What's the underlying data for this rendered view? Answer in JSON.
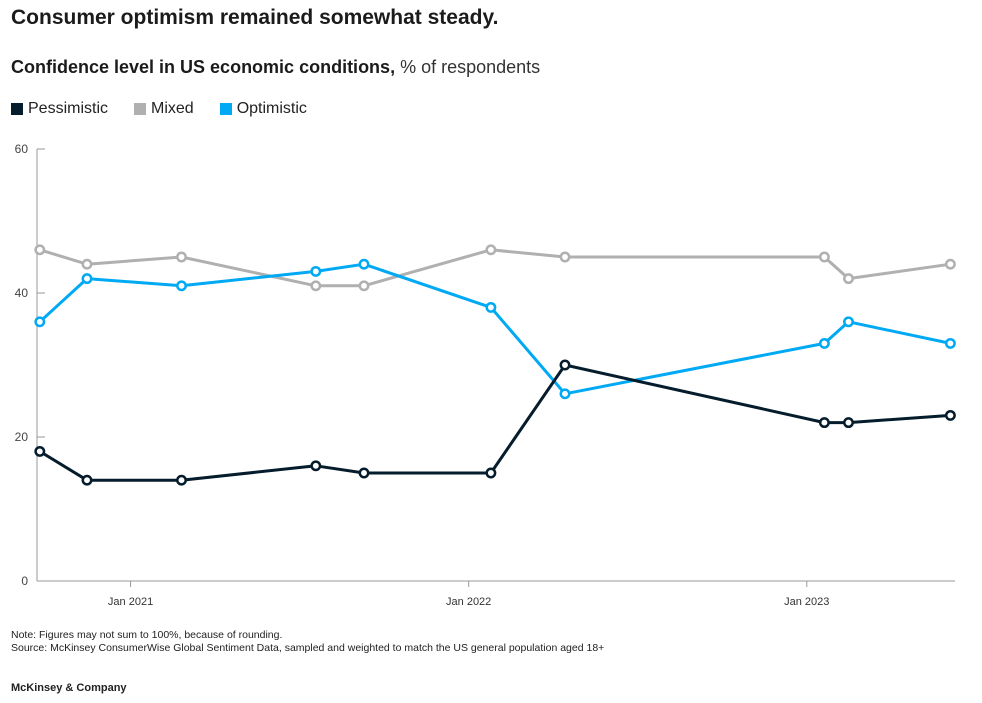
{
  "title": "Consumer optimism remained somewhat steady.",
  "subtitle": {
    "main": "Confidence level in US economic conditions,",
    "unit": "% of respondents"
  },
  "legend": [
    {
      "label": "Pessimistic",
      "color": "#051c2c"
    },
    {
      "label": "Mixed",
      "color": "#b0b0b0"
    },
    {
      "label": "Optimistic",
      "color": "#00a9f4"
    }
  ],
  "notes": {
    "note": "Note: Figures may not sum to 100%, because of rounding.",
    "source": "Source: McKinsey ConsumerWise Global Sentiment Data, sampled and weighted to match the US general population aged 18+"
  },
  "brand": "McKinsey & Company",
  "chart_data": {
    "type": "line",
    "title": "Consumer optimism remained somewhat steady.",
    "subtitle": "Confidence level in US economic conditions, % of respondents",
    "xlabel": "",
    "ylabel": "",
    "ylim": [
      0,
      60
    ],
    "yticks": [
      0,
      20,
      40,
      60
    ],
    "xticks": [
      {
        "label": "Jan 2021",
        "date": "2021-01-01"
      },
      {
        "label": "Jan 2022",
        "date": "2022-01-01"
      },
      {
        "label": "Jan 2023",
        "date": "2023-01-01"
      }
    ],
    "xlim": [
      "2020-09-22",
      "2023-06-10"
    ],
    "x": [
      "2020-09-25",
      "2020-11-15",
      "2021-02-25",
      "2021-07-20",
      "2021-09-10",
      "2022-01-25",
      "2022-04-15",
      "2023-01-20",
      "2023-02-15",
      "2023-06-05"
    ],
    "series": [
      {
        "name": "Pessimistic",
        "color": "#051c2c",
        "values": [
          18,
          14,
          14,
          16,
          15,
          15,
          30,
          22,
          22,
          23
        ]
      },
      {
        "name": "Mixed",
        "color": "#b0b0b0",
        "values": [
          46,
          44,
          45,
          41,
          41,
          46,
          45,
          45,
          42,
          44
        ]
      },
      {
        "name": "Optimistic",
        "color": "#00a9f4",
        "values": [
          36,
          42,
          41,
          43,
          44,
          38,
          26,
          33,
          36,
          33
        ]
      }
    ],
    "grid": false,
    "legend_position": "top-left"
  }
}
